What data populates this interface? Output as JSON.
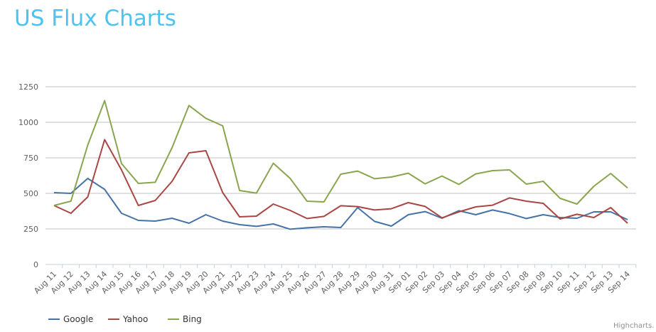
{
  "title": "US Flux Charts",
  "credit": "Highcharts.com",
  "chart_data": {
    "type": "line",
    "title": "US Flux Charts",
    "xlabel": "",
    "ylabel": "",
    "ylim": [
      0,
      1250
    ],
    "yticks": [
      0,
      250,
      500,
      750,
      1000,
      1250
    ],
    "grid": true,
    "legend": "bottom-left",
    "categories": [
      "Aug 11",
      "Aug 12",
      "Aug 13",
      "Aug 14",
      "Aug 15",
      "Aug 16",
      "Aug 17",
      "Aug 18",
      "Aug 19",
      "Aug 20",
      "Aug 21",
      "Aug 22",
      "Aug 23",
      "Aug 24",
      "Aug 25",
      "Aug 26",
      "Aug 27",
      "Aug 28",
      "Aug 29",
      "Aug 30",
      "Aug 31",
      "Sep 01",
      "Sep 02",
      "Sep 03",
      "Sep 04",
      "Sep 05",
      "Sep 06",
      "Sep 07",
      "Sep 08",
      "Sep 09",
      "Sep 10",
      "Sep 11",
      "Sep 12",
      "Sep 13",
      "Sep 14"
    ],
    "series": [
      {
        "name": "Google",
        "color": "#4572a7",
        "values": [
          505,
          500,
          605,
          528,
          360,
          310,
          305,
          325,
          290,
          350,
          305,
          280,
          268,
          285,
          248,
          258,
          265,
          260,
          400,
          303,
          270,
          350,
          372,
          325,
          378,
          350,
          383,
          358,
          323,
          350,
          330,
          325,
          370,
          370,
          315
        ]
      },
      {
        "name": "Yahoo",
        "color": "#aa4643",
        "values": [
          415,
          360,
          475,
          878,
          665,
          415,
          450,
          585,
          785,
          800,
          505,
          335,
          340,
          425,
          380,
          323,
          338,
          413,
          407,
          383,
          392,
          435,
          408,
          328,
          370,
          405,
          417,
          468,
          445,
          430,
          320,
          353,
          330,
          400,
          290
        ]
      },
      {
        "name": "Bing",
        "color": "#89a54e",
        "values": [
          415,
          445,
          840,
          1152,
          710,
          570,
          578,
          822,
          1118,
          1028,
          975,
          520,
          502,
          712,
          605,
          445,
          440,
          635,
          657,
          603,
          615,
          642,
          567,
          622,
          563,
          637,
          660,
          665,
          565,
          585,
          465,
          425,
          550,
          640,
          538
        ]
      }
    ]
  }
}
